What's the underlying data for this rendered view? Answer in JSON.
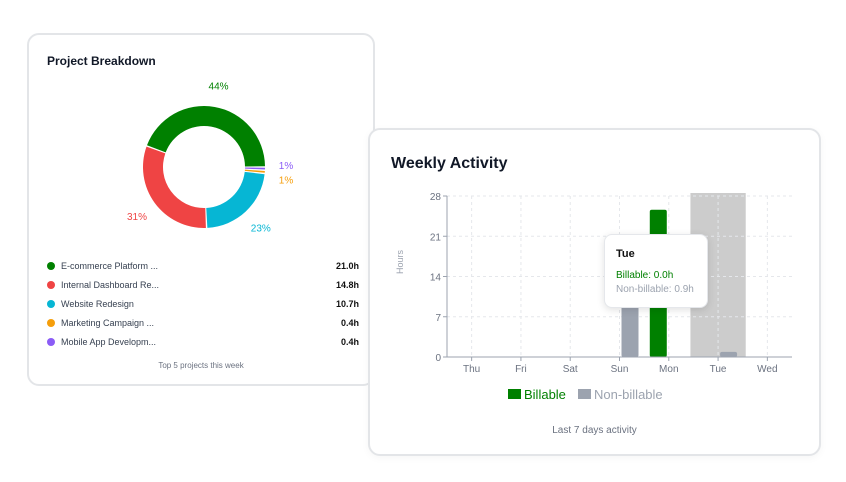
{
  "project_breakdown": {
    "title": "Project Breakdown",
    "footer": "Top 5 projects this week",
    "projects": [
      {
        "name": "E-commerce Platform ...",
        "hours": "21.0h",
        "value": 21.0,
        "percent": "44%",
        "color": "#008000"
      },
      {
        "name": "Internal Dashboard Re...",
        "hours": "14.8h",
        "value": 14.8,
        "percent": "31%",
        "color": "#ef4444"
      },
      {
        "name": "Website Redesign",
        "hours": "10.7h",
        "value": 10.7,
        "percent": "23%",
        "color": "#06b6d4"
      },
      {
        "name": "Marketing Campaign ...",
        "hours": "0.4h",
        "value": 0.4,
        "percent": "1%",
        "color": "#f59e0b"
      },
      {
        "name": "Mobile App Developm...",
        "hours": "0.4h",
        "value": 0.4,
        "percent": "1%",
        "color": "#8b5cf6"
      }
    ]
  },
  "weekly_activity": {
    "title": "Weekly Activity",
    "footer": "Last 7 days activity",
    "tooltip": {
      "day": "Tue",
      "billable": "Billable: 0.0h",
      "non_billable": "Non-billable: 0.9h"
    }
  },
  "chart_data": {
    "type": "bar",
    "ylabel": "Hours",
    "ylim": [
      0,
      28
    ],
    "yticks": [
      "0",
      "7",
      "14",
      "21",
      "28"
    ],
    "categories": [
      "Thu",
      "Fri",
      "Sat",
      "Sun",
      "Mon",
      "Tue",
      "Wed"
    ],
    "highlighted": "Tue",
    "grid": true,
    "legend": "bottom",
    "series": [
      {
        "name": "Billable",
        "color": "#008000",
        "values": [
          0,
          0,
          0,
          0,
          25.6,
          0,
          0
        ]
      },
      {
        "name": "Non-billable",
        "color": "#9ca3af",
        "values": [
          0,
          0,
          0,
          20.8,
          0,
          0.9,
          0
        ]
      }
    ]
  }
}
